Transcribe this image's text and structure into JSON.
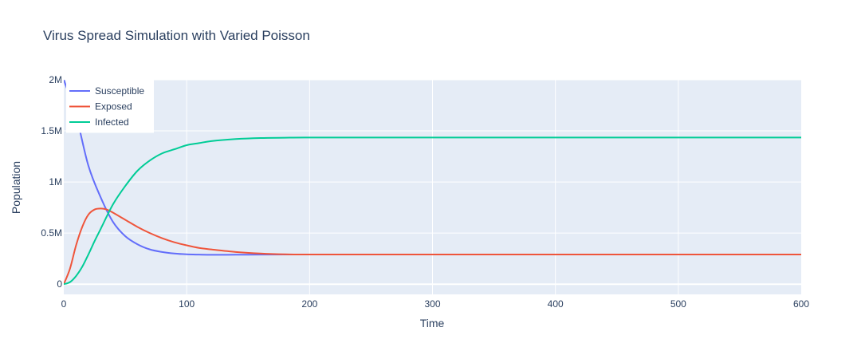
{
  "chart_data": {
    "type": "line",
    "title": "Virus Spread Simulation with Varied Poisson",
    "xlabel": "Time",
    "ylabel": "Population",
    "xlim": [
      0,
      600
    ],
    "ylim": [
      -100000,
      2000000
    ],
    "x_ticks": [
      0,
      100,
      200,
      300,
      400,
      500,
      600
    ],
    "x_tick_labels": [
      "0",
      "100",
      "200",
      "300",
      "400",
      "500",
      "600"
    ],
    "y_ticks": [
      0,
      500000,
      1000000,
      1500000,
      2000000
    ],
    "y_tick_labels": [
      "0",
      "0.5M",
      "1M",
      "1.5M",
      "2M"
    ],
    "grid": true,
    "legend_position": "top-left",
    "series": [
      {
        "name": "Susceptible",
        "color": "#636efa",
        "x": [
          0,
          10,
          20,
          30,
          40,
          50,
          60,
          70,
          80,
          90,
          100,
          110,
          120,
          140,
          160,
          180,
          200,
          300,
          400,
          500,
          600
        ],
        "values": [
          2000000,
          1650000,
          1160000,
          850000,
          610000,
          470000,
          390000,
          340000,
          315000,
          300000,
          292000,
          289000,
          287000,
          288000,
          289000,
          290000,
          290000,
          290000,
          290000,
          290000,
          290000
        ]
      },
      {
        "name": "Exposed",
        "color": "#ef553b",
        "x": [
          0,
          5,
          10,
          15,
          20,
          25,
          30,
          35,
          40,
          50,
          60,
          70,
          80,
          90,
          100,
          110,
          120,
          140,
          160,
          180,
          200,
          300,
          400,
          500,
          600
        ],
        "values": [
          0,
          150000,
          380000,
          560000,
          680000,
          730000,
          740000,
          730000,
          700000,
          630000,
          560000,
          500000,
          450000,
          410000,
          380000,
          355000,
          340000,
          315000,
          300000,
          292000,
          290000,
          290000,
          290000,
          290000,
          290000
        ]
      },
      {
        "name": "Infected",
        "color": "#00cc96",
        "x": [
          0,
          5,
          10,
          15,
          20,
          25,
          30,
          40,
          50,
          60,
          70,
          80,
          90,
          100,
          110,
          120,
          140,
          160,
          180,
          200,
          300,
          400,
          500,
          600
        ],
        "values": [
          0,
          20000,
          80000,
          170000,
          290000,
          420000,
          540000,
          780000,
          960000,
          1110000,
          1210000,
          1280000,
          1320000,
          1360000,
          1380000,
          1400000,
          1420000,
          1430000,
          1433000,
          1435000,
          1435000,
          1435000,
          1435000,
          1435000
        ]
      }
    ]
  }
}
